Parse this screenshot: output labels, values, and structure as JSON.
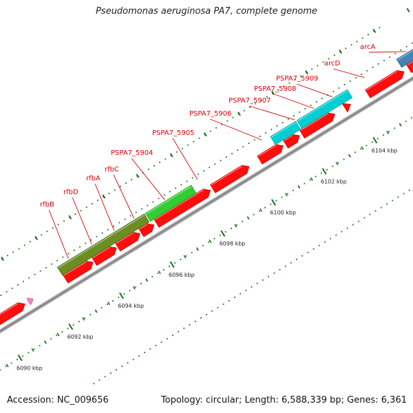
{
  "title": "Pseudomonas aeruginosa PA7, complete genome",
  "footer": {
    "accession": "Accession: NC_009656",
    "summary": "Topology: circular; Length: 6,588,339 bp; Genes: 6,361"
  },
  "colors": {
    "cds": "#ff0d0d",
    "backbone": "#8c8c8c",
    "tick": "#1e6e1e",
    "label": "#d40000",
    "rfb_cluster": "#6b8e23",
    "pspa7_5904": "#32cd32",
    "pspa7_5907": "#00ced1",
    "arc_operon": "#4682b4",
    "trna": "#ff80c0"
  },
  "ruler": {
    "tick_labels": [
      "6090 kbp",
      "6092 kbp",
      "6094 kbp",
      "6096 kbp",
      "6098 kbp",
      "6100 kbp",
      "6102 kbp",
      "6104 kbp"
    ]
  },
  "genes": [
    {
      "name": "rfbB"
    },
    {
      "name": "rfbD"
    },
    {
      "name": "rfbA"
    },
    {
      "name": "rfbC"
    },
    {
      "name": "PSPA7_5904"
    },
    {
      "name": "PSPA7_5905"
    },
    {
      "name": "PSPA7_5906"
    },
    {
      "name": "PSPA7_5907"
    },
    {
      "name": "PSPA7_5908"
    },
    {
      "name": "PSPA7_5909"
    },
    {
      "name": "arcD"
    },
    {
      "name": "arcA"
    }
  ]
}
